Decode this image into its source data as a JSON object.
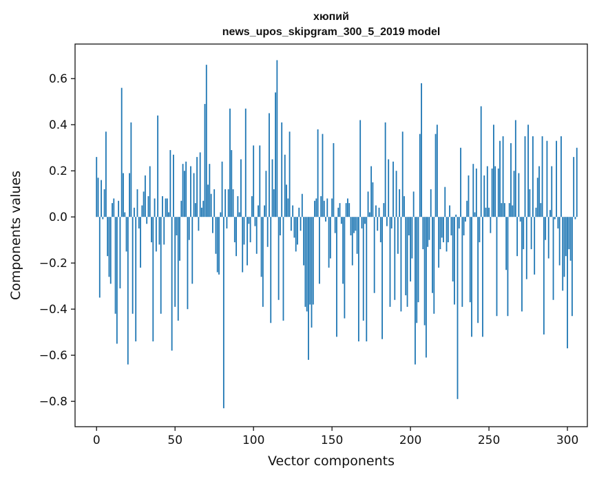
{
  "chart_data": {
    "type": "bar",
    "title_line1": "хюпий",
    "title_line2": "news_upos_skipgram_300_5_2019 model",
    "xlabel": "Vector components",
    "ylabel": "Components values",
    "xlim": [
      -13.7,
      312.7
    ],
    "ylim": [
      -0.91,
      0.75
    ],
    "xticks": [
      0,
      50,
      100,
      150,
      200,
      250,
      300
    ],
    "yticks": [
      -0.8,
      -0.6,
      -0.4,
      -0.2,
      0.0,
      0.2,
      0.4,
      0.6
    ],
    "ytick_labels": [
      "−0.8",
      "−0.6",
      "−0.4",
      "−0.2",
      "0.0",
      "0.2",
      "0.4",
      "0.6"
    ],
    "grid": false,
    "bar_color": "#1f77b4",
    "series": [
      {
        "values": [
          0.26,
          0.17,
          -0.35,
          0.16,
          -0.01,
          0.12,
          0.37,
          -0.17,
          -0.26,
          -0.29,
          0.06,
          0.08,
          -0.42,
          -0.55,
          0.07,
          -0.31,
          0.56,
          0.19,
          0.02,
          -0.15,
          -0.64,
          0.19,
          0.41,
          -0.42,
          0.04,
          -0.54,
          0.12,
          -0.05,
          -0.22,
          0.05,
          0.11,
          0.18,
          -0.03,
          0.09,
          0.22,
          -0.11,
          -0.54,
          0.08,
          -0.15,
          0.44,
          -0.12,
          -0.42,
          0.09,
          -0.12,
          0.08,
          0.08,
          0.02,
          0.29,
          -0.58,
          0.27,
          -0.39,
          -0.08,
          -0.45,
          -0.19,
          0.07,
          0.23,
          0.2,
          0.24,
          -0.4,
          -0.1,
          0.22,
          -0.29,
          0.19,
          0.06,
          0.26,
          -0.06,
          0.28,
          0.04,
          0.07,
          0.49,
          0.66,
          0.14,
          0.23,
          0.1,
          -0.07,
          0.12,
          -0.16,
          -0.24,
          -0.25,
          0.02,
          0.24,
          -0.83,
          0.12,
          -0.05,
          0.12,
          0.47,
          0.29,
          0.12,
          -0.11,
          -0.17,
          0.09,
          0.02,
          0.25,
          -0.24,
          -0.12,
          0.47,
          -0.21,
          -0.03,
          -0.11,
          0.09,
          0.31,
          -0.04,
          -0.16,
          0.05,
          0.31,
          -0.26,
          -0.39,
          0.05,
          0.2,
          -0.13,
          0.45,
          -0.46,
          0.25,
          0.12,
          0.54,
          0.68,
          -0.36,
          -0.08,
          0.41,
          -0.45,
          0.27,
          0.14,
          0.08,
          0.37,
          -0.06,
          0.05,
          -0.09,
          -0.15,
          -0.12,
          0.04,
          -0.06,
          0.1,
          -0.21,
          -0.39,
          -0.41,
          -0.62,
          -0.38,
          -0.48,
          -0.38,
          0.07,
          0.08,
          0.38,
          -0.29,
          0.09,
          0.36,
          0.07,
          -0.02,
          0.08,
          -0.22,
          -0.18,
          0.08,
          0.32,
          -0.07,
          -0.52,
          0.04,
          0.06,
          -0.03,
          -0.29,
          -0.44,
          0.06,
          0.08,
          0.06,
          -0.08,
          -0.21,
          -0.07,
          -0.06,
          -0.16,
          -0.54,
          0.42,
          -0.05,
          -0.45,
          -0.03,
          -0.54,
          0.11,
          0.02,
          0.22,
          0.15,
          -0.33,
          0.05,
          -0.06,
          0.04,
          -0.11,
          -0.53,
          0.06,
          0.41,
          -0.04,
          0.25,
          -0.39,
          -0.05,
          0.24,
          -0.36,
          0.2,
          -0.16,
          0.12,
          -0.41,
          0.37,
          0.09,
          -0.34,
          -0.39,
          -0.08,
          -0.28,
          -0.18,
          0.11,
          -0.64,
          -0.46,
          -0.37,
          0.36,
          0.58,
          -0.14,
          -0.47,
          -0.61,
          -0.13,
          -0.1,
          0.12,
          -0.33,
          -0.42,
          0.36,
          0.4,
          -0.22,
          -0.14,
          -0.09,
          -0.11,
          0.13,
          -0.15,
          -0.11,
          0.05,
          -0.08,
          -0.28,
          -0.38,
          0.01,
          -0.79,
          -0.05,
          0.3,
          -0.39,
          -0.08,
          -0.02,
          0.07,
          0.18,
          -0.37,
          -0.52,
          0.23,
          0.02,
          0.21,
          -0.46,
          -0.11,
          0.48,
          -0.52,
          0.18,
          0.04,
          0.22,
          0.04,
          -0.07,
          0.21,
          0.4,
          0.22,
          -0.43,
          0.21,
          0.33,
          0.06,
          0.35,
          0.06,
          -0.23,
          -0.43,
          0.06,
          0.32,
          0.05,
          0.2,
          0.42,
          -0.17,
          0.19,
          -0.02,
          -0.41,
          -0.14,
          0.35,
          -0.27,
          0.4,
          0.12,
          -0.14,
          0.35,
          -0.25,
          0.04,
          0.17,
          0.22,
          0.06,
          0.35,
          -0.51,
          -0.1,
          0.33,
          -0.18,
          0.03,
          0.22,
          -0.36,
          -0.01,
          0.33,
          -0.05,
          -0.21,
          0.35,
          -0.32,
          -0.26,
          -0.17,
          -0.57,
          -0.14,
          -0.19,
          -0.43,
          0.26,
          -0.01,
          0.3
        ]
      }
    ]
  }
}
